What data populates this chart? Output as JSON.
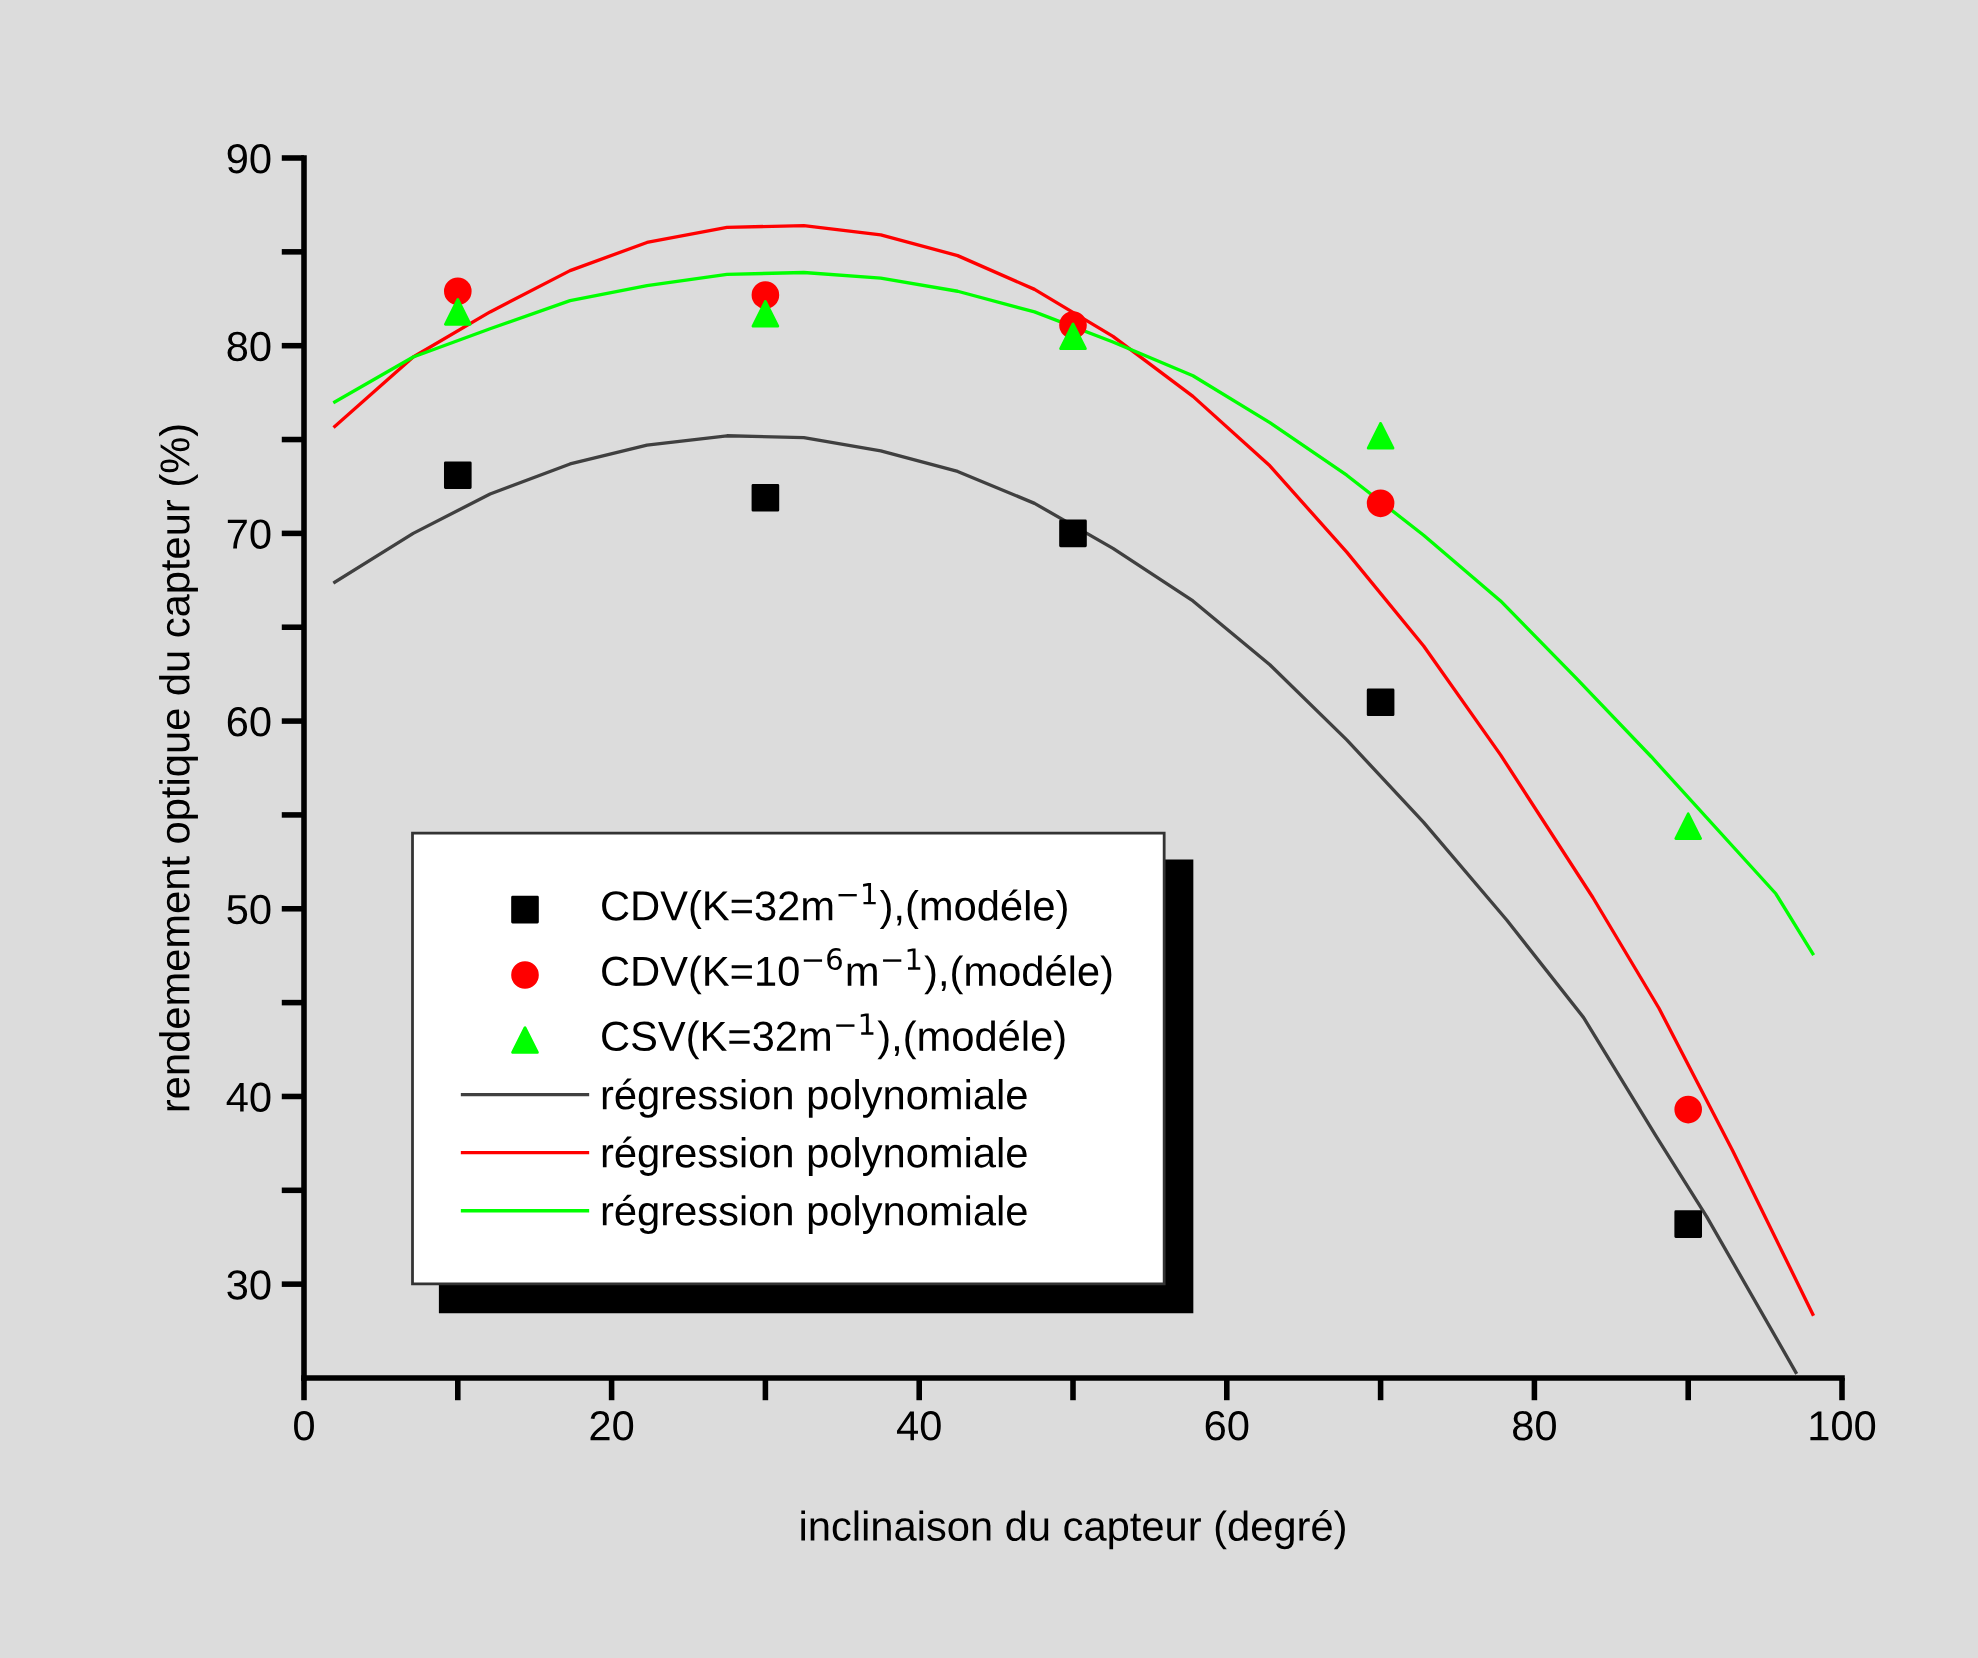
{
  "chart_data": {
    "type": "scatter",
    "xlabel": "inclinaison du capteur (degré)",
    "ylabel": "rendemement optique du capteur (%)",
    "x": [
      10,
      30,
      50,
      70,
      90
    ],
    "xlim": [
      0,
      100
    ],
    "ylim": [
      25,
      90
    ],
    "xticks": [
      0,
      {
        "value": 10,
        "label": null
      },
      20,
      {
        "value": 30,
        "label": null
      },
      40,
      {
        "value": 50,
        "label": null
      },
      60,
      {
        "value": 70,
        "label": null
      },
      80,
      {
        "value": 90,
        "label": null
      },
      100
    ],
    "yticks": [
      30,
      {
        "value": 35,
        "label": null
      },
      40,
      {
        "value": 45,
        "label": null
      },
      50,
      {
        "value": 55,
        "label": null
      },
      60,
      {
        "value": 65,
        "label": null
      },
      70,
      {
        "value": 75,
        "label": null
      },
      80,
      {
        "value": 85,
        "label": null
      },
      90
    ],
    "grid": false,
    "legend": "bottom left",
    "series": [
      {
        "name": "CDV(K=32m$^{−1}$),(modéle)",
        "color": "#000000",
        "marker": "square",
        "values": [
          73.1,
          71.9,
          70.0,
          61.0,
          33.2
        ]
      },
      {
        "name": "CDV(K=10$^{−6}$m$^{−1}$),(modéle)",
        "color": "#ff0000",
        "marker": "circle",
        "values": [
          82.9,
          82.7,
          81.1,
          71.6,
          39.3
        ]
      },
      {
        "name": "CSV(K=32m$^{−1}$),(modéle)",
        "color": "#00ff00",
        "marker": "triangle",
        "values": [
          81.8,
          81.7,
          80.5,
          75.2,
          54.4
        ]
      },
      {
        "name": "régression polynomiale",
        "color": "#404040",
        "type": "line",
        "marker": "none",
        "line_style": "solid",
        "x": [
          2,
          7.1,
          12.1,
          17.3,
          22.3,
          27.5,
          32.5,
          37.5,
          42.5,
          47.5,
          52.6,
          57.8,
          62.8,
          67.8,
          72.8,
          78.2,
          83.2,
          87.9,
          91.2,
          97.0
        ],
        "values": [
          67.4,
          70.0,
          72.1,
          73.7,
          74.7,
          75.2,
          75.1,
          74.4,
          73.3,
          71.6,
          69.2,
          66.4,
          63.0,
          59.0,
          54.6,
          49.4,
          44.2,
          37.9,
          33.6,
          25.3
        ]
      },
      {
        "name": "régression polynomiale",
        "color": "#ff0000",
        "type": "line",
        "marker": "none",
        "line_style": "solid",
        "x": [
          2,
          7.1,
          12.1,
          17.3,
          22.3,
          27.5,
          32.5,
          37.5,
          42.5,
          47.5,
          52.6,
          57.8,
          62.8,
          67.8,
          72.8,
          77.8,
          83.8,
          88.1,
          92.9,
          98.1
        ],
        "values": [
          75.7,
          79.4,
          81.8,
          84.0,
          85.5,
          86.3,
          86.4,
          85.9,
          84.8,
          83.0,
          80.5,
          77.3,
          73.6,
          69.0,
          64.0,
          58.2,
          50.6,
          44.7,
          37.1,
          28.4
        ]
      },
      {
        "name": "régression polynomiale",
        "color": "#00ff00",
        "type": "line",
        "marker": "none",
        "line_style": "solid",
        "x": [
          2,
          7.1,
          12.1,
          17.3,
          22.3,
          27.5,
          32.5,
          37.5,
          42.5,
          47.5,
          52.6,
          57.8,
          62.8,
          67.8,
          72.8,
          77.8,
          82.7,
          87.6,
          95.7,
          98.1
        ],
        "values": [
          77.0,
          79.4,
          80.9,
          82.4,
          83.2,
          83.8,
          83.9,
          83.6,
          82.9,
          81.8,
          80.2,
          78.4,
          75.9,
          73.1,
          69.9,
          66.4,
          62.3,
          58.1,
          50.8,
          47.6
        ]
      }
    ]
  }
}
